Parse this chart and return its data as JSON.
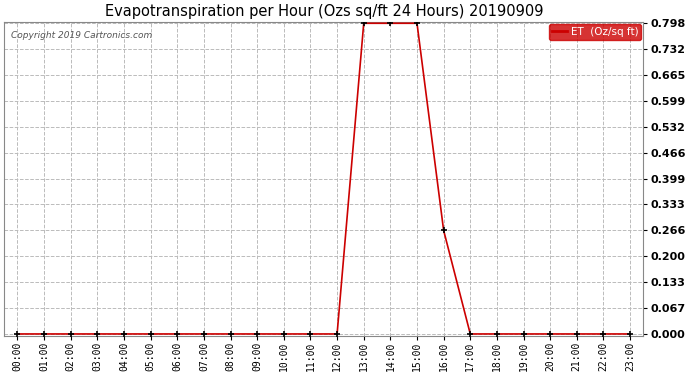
{
  "title": "Evapotranspiration per Hour (Ozs sq/ft 24 Hours) 20190909",
  "copyright": "Copyright 2019 Cartronics.com",
  "legend_label": "ET  (Oz/sq ft)",
  "background_color": "#ffffff",
  "line_color": "#cc0000",
  "marker_color": "#000000",
  "grid_color": "#bbbbbb",
  "ylim_max": 0.798,
  "yticks": [
    0.0,
    0.067,
    0.133,
    0.2,
    0.266,
    0.333,
    0.399,
    0.466,
    0.532,
    0.599,
    0.665,
    0.732,
    0.798
  ],
  "hours": [
    "00:00",
    "01:00",
    "02:00",
    "03:00",
    "04:00",
    "05:00",
    "06:00",
    "07:00",
    "08:00",
    "09:00",
    "10:00",
    "11:00",
    "12:00",
    "13:00",
    "14:00",
    "15:00",
    "16:00",
    "17:00",
    "18:00",
    "19:00",
    "20:00",
    "21:00",
    "22:00",
    "23:00"
  ],
  "values": [
    0.0,
    0.0,
    0.0,
    0.0,
    0.0,
    0.0,
    0.0,
    0.0,
    0.0,
    0.0,
    0.0,
    0.0,
    0.0,
    0.798,
    0.798,
    0.798,
    0.266,
    0.0,
    0.0,
    0.0,
    0.0,
    0.0,
    0.0,
    0.0
  ]
}
